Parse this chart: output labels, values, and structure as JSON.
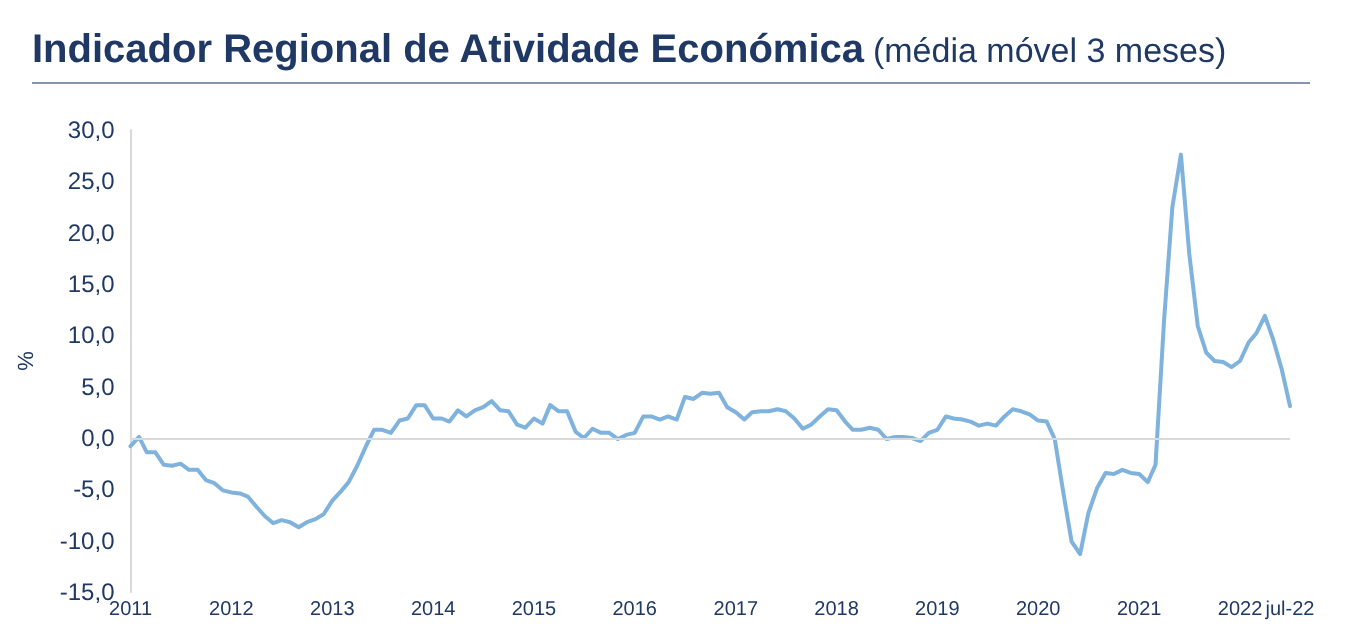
{
  "chart_data": {
    "type": "line",
    "title": "Indicador Regional de Atividade Económica",
    "subtitle": "(média móvel 3 meses)",
    "ylabel": "%",
    "x": [
      "2011-01",
      "2011-02",
      "2011-03",
      "2011-04",
      "2011-05",
      "2011-06",
      "2011-07",
      "2011-08",
      "2011-09",
      "2011-10",
      "2011-11",
      "2011-12",
      "2012-01",
      "2012-02",
      "2012-03",
      "2012-04",
      "2012-05",
      "2012-06",
      "2012-07",
      "2012-08",
      "2012-09",
      "2012-10",
      "2012-11",
      "2012-12",
      "2013-01",
      "2013-02",
      "2013-03",
      "2013-04",
      "2013-05",
      "2013-06",
      "2013-07",
      "2013-08",
      "2013-09",
      "2013-10",
      "2013-11",
      "2013-12",
      "2014-01",
      "2014-02",
      "2014-03",
      "2014-04",
      "2014-05",
      "2014-06",
      "2014-07",
      "2014-08",
      "2014-09",
      "2014-10",
      "2014-11",
      "2014-12",
      "2015-01",
      "2015-02",
      "2015-03",
      "2015-04",
      "2015-05",
      "2015-06",
      "2015-07",
      "2015-08",
      "2015-09",
      "2015-10",
      "2015-11",
      "2015-12",
      "2016-01",
      "2016-02",
      "2016-03",
      "2016-04",
      "2016-05",
      "2016-06",
      "2016-07",
      "2016-08",
      "2016-09",
      "2016-10",
      "2016-11",
      "2016-12",
      "2017-01",
      "2017-02",
      "2017-03",
      "2017-04",
      "2017-05",
      "2017-06",
      "2017-07",
      "2017-08",
      "2017-09",
      "2017-10",
      "2017-11",
      "2017-12",
      "2018-01",
      "2018-02",
      "2018-03",
      "2018-04",
      "2018-05",
      "2018-06",
      "2018-07",
      "2018-08",
      "2018-09",
      "2018-10",
      "2018-11",
      "2018-12",
      "2019-01",
      "2019-02",
      "2019-03",
      "2019-04",
      "2019-05",
      "2019-06",
      "2019-07",
      "2019-08",
      "2019-09",
      "2019-10",
      "2019-11",
      "2019-12",
      "2020-01",
      "2020-02",
      "2020-03",
      "2020-04",
      "2020-05",
      "2020-06",
      "2020-07",
      "2020-08",
      "2020-09",
      "2020-10",
      "2020-11",
      "2020-12",
      "2021-01",
      "2021-02",
      "2021-03",
      "2021-04",
      "2021-05",
      "2021-06",
      "2021-07",
      "2021-08",
      "2021-09",
      "2021-10",
      "2021-11",
      "2021-12",
      "2022-01",
      "2022-02",
      "2022-03",
      "2022-04",
      "2022-05",
      "2022-06",
      "2022-07"
    ],
    "series": [
      {
        "color": "#7fb2dc",
        "values": [
          -0.8,
          0.1,
          -1.4,
          -1.4,
          -2.6,
          -2.7,
          -2.5,
          -3.1,
          -3.1,
          -4.1,
          -4.4,
          -5.1,
          -5.3,
          -5.4,
          -5.7,
          -6.7,
          -7.6,
          -8.3,
          -8.0,
          -8.2,
          -8.7,
          -8.2,
          -7.9,
          -7.4,
          -6.1,
          -5.2,
          -4.3,
          -2.7,
          -0.9,
          0.8,
          0.8,
          0.5,
          1.7,
          1.9,
          3.2,
          3.2,
          1.9,
          1.9,
          1.6,
          2.7,
          2.1,
          2.7,
          3.0,
          3.6,
          2.7,
          2.6,
          1.3,
          1.0,
          1.9,
          1.4,
          3.2,
          2.6,
          2.6,
          0.6,
          0.0,
          0.9,
          0.5,
          0.5,
          -0.1,
          0.3,
          0.5,
          2.1,
          2.1,
          1.8,
          2.1,
          1.8,
          4.0,
          3.8,
          4.4,
          4.3,
          4.4,
          3.0,
          2.5,
          1.8,
          2.5,
          2.6,
          2.6,
          2.8,
          2.6,
          1.9,
          0.9,
          1.3,
          2.1,
          2.8,
          2.7,
          1.6,
          0.8,
          0.8,
          1.0,
          0.8,
          -0.1,
          0.1,
          0.1,
          0.0,
          -0.3,
          0.5,
          0.8,
          2.1,
          1.9,
          1.8,
          1.6,
          1.2,
          1.4,
          1.2,
          2.1,
          2.8,
          2.6,
          2.3,
          1.7,
          1.6,
          -0.1,
          -5.3,
          -10.1,
          -11.3,
          -7.3,
          -4.9,
          -3.4,
          -3.5,
          -3.1,
          -3.4,
          -3.5,
          -4.3,
          -2.6,
          11.5,
          22.5,
          27.6,
          18.0,
          10.9,
          8.3,
          7.5,
          7.4,
          6.9,
          7.5,
          9.3,
          10.2,
          11.9,
          9.6,
          6.7,
          3.1
        ]
      }
    ],
    "xlim": [
      "2011-01",
      "2022-07"
    ],
    "xticks": [
      {
        "value": "2011-01",
        "label": "2011"
      },
      {
        "value": "2012-01",
        "label": "2012"
      },
      {
        "value": "2013-01",
        "label": "2013"
      },
      {
        "value": "2014-01",
        "label": "2014"
      },
      {
        "value": "2015-01",
        "label": "2015"
      },
      {
        "value": "2016-01",
        "label": "2016"
      },
      {
        "value": "2017-01",
        "label": "2017"
      },
      {
        "value": "2018-01",
        "label": "2018"
      },
      {
        "value": "2019-01",
        "label": "2019"
      },
      {
        "value": "2020-01",
        "label": "2020"
      },
      {
        "value": "2021-01",
        "label": "2021"
      },
      {
        "value": "2022-01",
        "label": "2022"
      },
      {
        "value": "2022-07",
        "label": "jul-22"
      }
    ],
    "ylim": [
      -15,
      30
    ],
    "yticks": [
      {
        "value": -15,
        "label": "-15,0"
      },
      {
        "value": -10,
        "label": "-10,0"
      },
      {
        "value": -5,
        "label": "-5,0"
      },
      {
        "value": 0,
        "label": "0,0"
      },
      {
        "value": 5,
        "label": "5,0"
      },
      {
        "value": 10,
        "label": "10,0"
      },
      {
        "value": 15,
        "label": "15,0"
      },
      {
        "value": 20,
        "label": "20,0"
      },
      {
        "value": 25,
        "label": "25,0"
      },
      {
        "value": 30,
        "label": "30,0"
      }
    ],
    "ref_lines": [
      {
        "axis": "y",
        "value": 0,
        "color": "#d9d9d9"
      }
    ],
    "grid": false,
    "marker": "none",
    "line_style": "solid"
  }
}
